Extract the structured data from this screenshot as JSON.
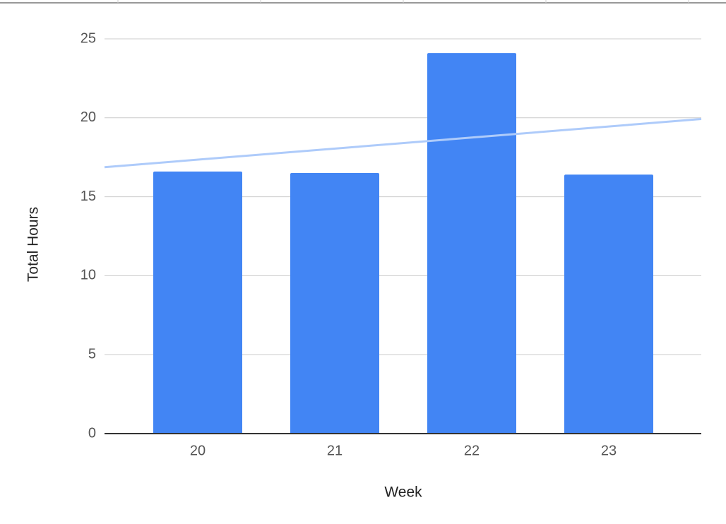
{
  "chart_data": {
    "type": "bar",
    "categories": [
      "20",
      "21",
      "22",
      "23"
    ],
    "values": [
      16.6,
      16.5,
      24.1,
      16.4
    ],
    "color": "#4285f4",
    "x_label": "Week",
    "y_label": "Total Hours",
    "ylim": [
      0,
      25
    ],
    "yticks": [
      0,
      5,
      10,
      15,
      20,
      25
    ],
    "grid": true,
    "trendline": true,
    "trendline_color": "#aecbfa"
  }
}
